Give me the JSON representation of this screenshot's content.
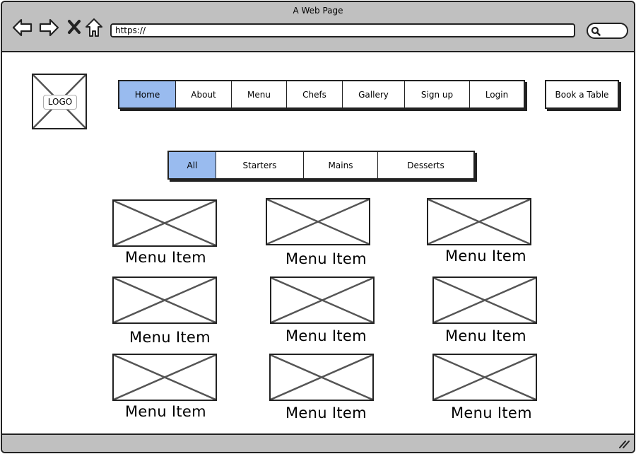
{
  "browser": {
    "title": "A Web Page",
    "url": "https://",
    "icons": [
      "back-arrow-icon",
      "forward-arrow-icon",
      "close-x-icon",
      "home-icon",
      "search-icon",
      "resize-grip-icon"
    ]
  },
  "logo": {
    "label": "LOGO"
  },
  "nav": {
    "items": [
      "Home",
      "About",
      "Menu",
      "Chefs",
      "Gallery",
      "Sign up",
      "Login"
    ],
    "active": "Home"
  },
  "book_button": {
    "label": "Book a Table"
  },
  "filters": {
    "items": [
      "All",
      "Starters",
      "Mains",
      "Desserts"
    ],
    "active": "All"
  },
  "menu_items": [
    {
      "label": "Menu Item"
    },
    {
      "label": "Menu Item"
    },
    {
      "label": "Menu Item"
    },
    {
      "label": "Menu Item"
    },
    {
      "label": "Menu Item"
    },
    {
      "label": "Menu Item"
    },
    {
      "label": "Menu Item"
    },
    {
      "label": "Menu Item"
    },
    {
      "label": "Menu Item"
    }
  ],
  "colors": {
    "chrome": "#c0c0c0",
    "active_tab": "#99bbef",
    "stroke": "#222222"
  }
}
